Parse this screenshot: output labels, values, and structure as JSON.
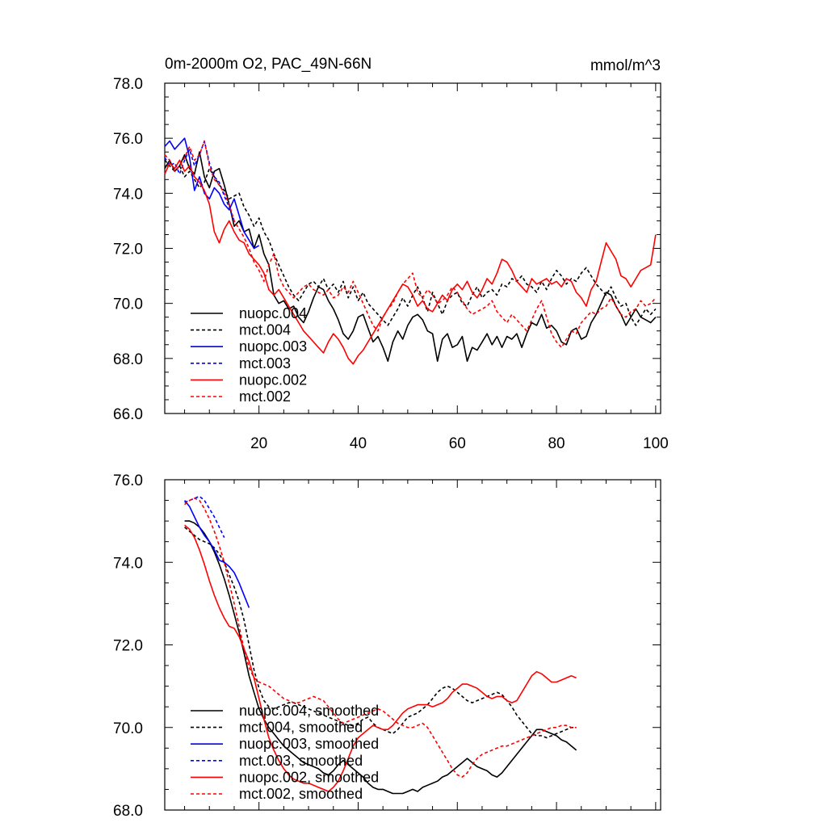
{
  "chart_data": [
    {
      "type": "line",
      "title": "0m-2000m O2, PAC_49N-66N",
      "units": "mmol/m^3",
      "xlim": [
        1,
        101
      ],
      "ylim": [
        66,
        78
      ],
      "x_ticks": [
        20,
        40,
        60,
        80,
        100
      ],
      "x_tick_labels": [
        "20",
        "40",
        "60",
        "80",
        "100"
      ],
      "y_ticks": [
        66,
        68,
        70,
        72,
        74,
        76,
        78
      ],
      "y_tick_labels": [
        "66.0",
        "68.0",
        "70.0",
        "72.0",
        "74.0",
        "76.0",
        "78.0"
      ],
      "legend_position": "bottom-left",
      "series": [
        {
          "name": "nuopc.004",
          "color": "#000000",
          "dash": "solid",
          "x_start": 1,
          "values": [
            74.9,
            75.2,
            74.8,
            75.0,
            75.4,
            74.9,
            74.7,
            75.5,
            74.6,
            74.2,
            74.8,
            74.9,
            74.3,
            73.6,
            72.8,
            73.0,
            72.6,
            72.7,
            72.0,
            72.5,
            71.8,
            71.4,
            70.3,
            70.0,
            70.1,
            69.8,
            69.9,
            69.5,
            69.3,
            69.7,
            70.2,
            70.6,
            70.5,
            70.1,
            69.8,
            69.4,
            68.9,
            68.7,
            69.0,
            69.5,
            69.6,
            69.1,
            68.6,
            68.8,
            68.4,
            67.9,
            68.6,
            69.0,
            68.7,
            69.2,
            69.5,
            69.6,
            69.4,
            69.0,
            68.9,
            67.9,
            68.7,
            68.9,
            68.4,
            68.5,
            68.8,
            67.9,
            68.4,
            68.3,
            68.6,
            68.9,
            68.5,
            68.8,
            68.4,
            68.8,
            68.7,
            68.9,
            68.4,
            68.9,
            69.3,
            69.2,
            69.6,
            69.1,
            69.2,
            69.0,
            68.6,
            68.5,
            69.0,
            69.1,
            68.7,
            68.8,
            69.3,
            69.6,
            70.0,
            70.4,
            70.3,
            69.9,
            69.6,
            69.2,
            69.5,
            69.8,
            69.5,
            69.4,
            69.3,
            69.5
          ]
        },
        {
          "name": "mct.004",
          "color": "#000000",
          "dash": "dashed",
          "x_start": 1,
          "values": [
            75.2,
            75.0,
            74.8,
            75.0,
            74.6,
            74.8,
            74.5,
            74.2,
            74.4,
            74.9,
            74.6,
            74.3,
            74.1,
            73.8,
            73.9,
            74.0,
            73.5,
            73.2,
            72.8,
            73.1,
            72.6,
            72.3,
            71.8,
            71.4,
            71.0,
            70.6,
            70.3,
            70.1,
            70.4,
            70.7,
            70.8,
            70.6,
            70.9,
            70.5,
            70.7,
            70.4,
            70.8,
            70.2,
            70.6,
            70.1,
            70.4,
            70.0,
            69.8,
            69.6,
            69.4,
            69.2,
            69.5,
            69.8,
            70.2,
            69.9,
            70.3,
            70.6,
            70.2,
            69.7,
            70.4,
            70.0,
            69.6,
            70.1,
            70.3,
            70.4,
            70.0,
            69.9,
            70.3,
            70.6,
            70.2,
            70.4,
            70.5,
            70.3,
            70.7,
            70.6,
            70.9,
            70.8,
            71.0,
            70.7,
            70.6,
            70.4,
            70.8,
            70.5,
            70.9,
            71.2,
            71.0,
            70.7,
            70.9,
            70.8,
            71.1,
            71.3,
            71.0,
            70.7,
            70.5,
            70.3,
            70.6,
            70.2,
            69.9,
            70.0,
            69.5,
            69.2,
            69.5,
            69.8,
            69.6,
            69.8
          ]
        },
        {
          "name": "nuopc.003",
          "color": "#0000ff",
          "dash": "solid",
          "x_start": 1,
          "values": [
            75.7,
            75.9,
            75.6,
            75.8,
            76.0,
            75.3,
            74.1,
            74.6,
            74.0,
            73.8,
            74.2,
            74.0,
            73.6,
            73.4,
            73.8,
            73.2,
            72.6,
            72.3,
            72.0,
            72.1
          ]
        },
        {
          "name": "mct.003",
          "color": "#0000ff",
          "dash": "dashed",
          "x_start": 1,
          "values": [
            75.3,
            75.0,
            75.1,
            74.7,
            75.2,
            75.6,
            75.0,
            75.4,
            75.9,
            75.1,
            74.6,
            74.4,
            73.9,
            73.5,
            73.0
          ]
        },
        {
          "name": "nuopc.002",
          "color": "#ff0000",
          "dash": "solid",
          "x_start": 1,
          "values": [
            74.7,
            75.1,
            74.9,
            75.2,
            74.8,
            75.0,
            74.6,
            74.4,
            74.1,
            73.6,
            72.6,
            72.2,
            72.7,
            73.0,
            72.6,
            72.3,
            72.2,
            71.8,
            71.6,
            71.4,
            71.1,
            70.5,
            70.3,
            70.5,
            70.2,
            69.9,
            69.6,
            69.3,
            69.0,
            68.8,
            68.6,
            68.4,
            68.2,
            68.6,
            68.9,
            68.7,
            68.4,
            68.0,
            67.8,
            68.1,
            68.3,
            68.6,
            68.9,
            69.2,
            69.5,
            69.8,
            70.1,
            70.4,
            70.7,
            70.6,
            70.3,
            69.9,
            70.1,
            69.8,
            69.7,
            70.0,
            70.3,
            70.1,
            70.5,
            70.7,
            70.5,
            70.8,
            70.4,
            70.2,
            70.5,
            70.9,
            70.7,
            71.1,
            71.6,
            71.5,
            71.2,
            70.8,
            70.6,
            70.4,
            70.9,
            70.7,
            70.8,
            70.9,
            70.7,
            70.8,
            70.6,
            70.9,
            70.8,
            70.4,
            70.2,
            69.9,
            70.5,
            70.8,
            71.5,
            72.2,
            71.9,
            71.6,
            71.0,
            70.9,
            70.6,
            70.9,
            71.2,
            71.3,
            71.4,
            72.5
          ]
        },
        {
          "name": "mct.002",
          "color": "#ff0000",
          "dash": "dashed",
          "x_start": 1,
          "values": [
            75.4,
            75.2,
            74.8,
            75.0,
            75.3,
            75.7,
            75.2,
            75.4,
            75.9,
            75.0,
            74.5,
            74.3,
            74.0,
            73.6,
            73.0,
            72.7,
            72.4,
            72.0,
            71.5,
            71.2,
            70.8,
            71.4,
            71.8,
            71.0,
            70.6,
            70.4,
            70.2,
            70.4,
            70.6,
            70.7,
            70.5,
            70.4,
            70.3,
            70.5,
            70.2,
            70.3,
            70.6,
            70.4,
            70.8,
            70.4,
            70.0,
            69.6,
            69.2,
            69.0,
            69.5,
            69.8,
            70.0,
            70.4,
            70.7,
            70.9,
            71.1,
            70.4,
            70.2,
            70.5,
            70.3,
            70.0,
            70.1,
            70.3,
            70.6,
            70.4,
            70.1,
            69.8,
            69.6,
            69.7,
            69.8,
            69.9,
            70.1,
            69.7,
            69.5,
            69.3,
            69.6,
            69.4,
            69.2,
            69.0,
            69.4,
            69.8,
            70.1,
            69.5,
            68.9,
            68.6,
            68.4,
            68.7,
            69.0,
            68.9,
            69.3,
            69.5,
            69.7,
            69.6,
            69.8,
            69.9,
            70.2,
            69.9,
            69.6,
            69.5,
            69.7,
            69.8,
            70.1,
            69.9,
            70.0,
            70.2
          ]
        }
      ]
    },
    {
      "type": "line",
      "xlim": [
        1,
        101
      ],
      "ylim": [
        68,
        76
      ],
      "x_ticks": [
        20,
        40,
        60,
        80,
        100
      ],
      "y_ticks": [
        68,
        70,
        72,
        74,
        76
      ],
      "y_tick_labels": [
        "68.0",
        "70.0",
        "72.0",
        "74.0",
        "76.0"
      ],
      "legend_position": "bottom-left",
      "series": [
        {
          "name": "nuopc.004, smoothed",
          "color": "#000000",
          "dash": "solid",
          "x_start": 5,
          "values": [
            75.0,
            75.0,
            74.95,
            74.85,
            74.7,
            74.5,
            74.25,
            73.95,
            73.6,
            73.2,
            72.75,
            72.3,
            71.8,
            71.25,
            70.85,
            70.45,
            70.2,
            70.0,
            69.85,
            69.7,
            69.55,
            69.45,
            69.35,
            69.25,
            69.15,
            69.1,
            69.05,
            69.0,
            68.9,
            68.85,
            68.95,
            69.1,
            69.2,
            69.1,
            69.0,
            68.9,
            68.8,
            68.65,
            68.55,
            68.5,
            68.5,
            68.45,
            68.4,
            68.4,
            68.4,
            68.45,
            68.5,
            68.45,
            68.55,
            68.6,
            68.65,
            68.7,
            68.8,
            68.85,
            68.95,
            69.05,
            69.15,
            69.25,
            69.15,
            69.05,
            69.0,
            68.95,
            68.85,
            68.8,
            68.9,
            69.05,
            69.2,
            69.35,
            69.5,
            69.65,
            69.8,
            69.95,
            69.95,
            69.9,
            69.85,
            69.8,
            69.7,
            69.65,
            69.55,
            69.45
          ]
        },
        {
          "name": "mct.004, smoothed",
          "color": "#000000",
          "dash": "dashed",
          "x_start": 5,
          "values": [
            74.85,
            74.75,
            74.65,
            74.55,
            74.5,
            74.45,
            74.35,
            74.2,
            74.0,
            73.7,
            73.4,
            73.05,
            72.6,
            72.0,
            71.4,
            70.95,
            70.65,
            70.5,
            70.45,
            70.5,
            70.55,
            70.6,
            70.6,
            70.55,
            70.5,
            70.45,
            70.4,
            70.35,
            70.3,
            70.25,
            70.2,
            70.15,
            70.1,
            70.05,
            70.05,
            70.1,
            70.2,
            70.25,
            70.1,
            70.0,
            69.95,
            69.9,
            69.85,
            69.95,
            70.1,
            70.25,
            70.3,
            70.35,
            70.45,
            70.55,
            70.7,
            70.85,
            70.95,
            71.0,
            70.95,
            70.85,
            70.75,
            70.65,
            70.6,
            70.65,
            70.7,
            70.75,
            70.8,
            70.85,
            70.8,
            70.65,
            70.5,
            70.3,
            70.15,
            70.0,
            69.85,
            69.8,
            69.8,
            69.75,
            69.8,
            69.85,
            69.9,
            69.95,
            70.0,
            70.0
          ]
        },
        {
          "name": "nuopc.003, smoothed",
          "color": "#0000ff",
          "dash": "solid",
          "x_start": 5,
          "values": [
            75.5,
            75.35,
            75.1,
            74.85,
            74.65,
            74.5,
            74.3,
            74.05,
            74.0,
            73.9,
            73.75,
            73.5,
            73.2,
            72.9
          ]
        },
        {
          "name": "mct.003, smoothed",
          "color": "#0000ff",
          "dash": "dashed",
          "x_start": 5,
          "values": [
            75.45,
            75.5,
            75.55,
            75.6,
            75.5,
            75.3,
            75.1,
            74.85,
            74.6
          ]
        },
        {
          "name": "nuopc.002, smoothed",
          "color": "#ff0000",
          "dash": "solid",
          "x_start": 5,
          "values": [
            74.9,
            74.8,
            74.6,
            74.3,
            73.95,
            73.55,
            73.2,
            72.9,
            72.65,
            72.45,
            72.4,
            72.2,
            71.9,
            71.6,
            71.2,
            70.7,
            70.2,
            69.75,
            69.45,
            69.2,
            69.0,
            68.85,
            68.75,
            68.7,
            68.65,
            68.65,
            68.6,
            68.55,
            68.5,
            68.45,
            68.55,
            68.7,
            68.95,
            69.25,
            69.55,
            69.75,
            69.85,
            69.95,
            70.05,
            70.0,
            69.95,
            69.95,
            70.05,
            70.2,
            70.35,
            70.45,
            70.5,
            70.55,
            70.55,
            70.55,
            70.5,
            70.55,
            70.6,
            70.7,
            70.85,
            70.95,
            71.05,
            71.05,
            71.0,
            70.95,
            70.85,
            70.75,
            70.7,
            70.75,
            70.75,
            70.65,
            70.6,
            70.65,
            70.85,
            71.05,
            71.25,
            71.35,
            71.3,
            71.2,
            71.1,
            71.1,
            71.15,
            71.2,
            71.25,
            71.2
          ]
        },
        {
          "name": "mct.002, smoothed",
          "color": "#ff0000",
          "dash": "dashed",
          "x_start": 5,
          "values": [
            75.4,
            75.5,
            75.55,
            75.5,
            75.3,
            75.05,
            74.75,
            74.4,
            74.0,
            73.5,
            73.0,
            72.45,
            71.9,
            71.45,
            71.2,
            71.1,
            71.05,
            71.0,
            70.9,
            70.8,
            70.7,
            70.65,
            70.6,
            70.6,
            70.65,
            70.7,
            70.75,
            70.7,
            70.65,
            70.5,
            70.35,
            70.2,
            70.1,
            70.15,
            70.2,
            70.25,
            70.3,
            70.35,
            70.4,
            70.45,
            70.4,
            70.3,
            70.2,
            70.1,
            70.05,
            70.0,
            70.0,
            70.05,
            70.1,
            70.0,
            69.8,
            69.6,
            69.4,
            69.2,
            69.0,
            68.85,
            68.8,
            68.9,
            69.1,
            69.25,
            69.35,
            69.4,
            69.45,
            69.5,
            69.55,
            69.55,
            69.6,
            69.65,
            69.7,
            69.75,
            69.8,
            69.85,
            69.9,
            69.95,
            70.0,
            70.0,
            70.05,
            70.05,
            70.0,
            70.0
          ]
        }
      ]
    }
  ]
}
